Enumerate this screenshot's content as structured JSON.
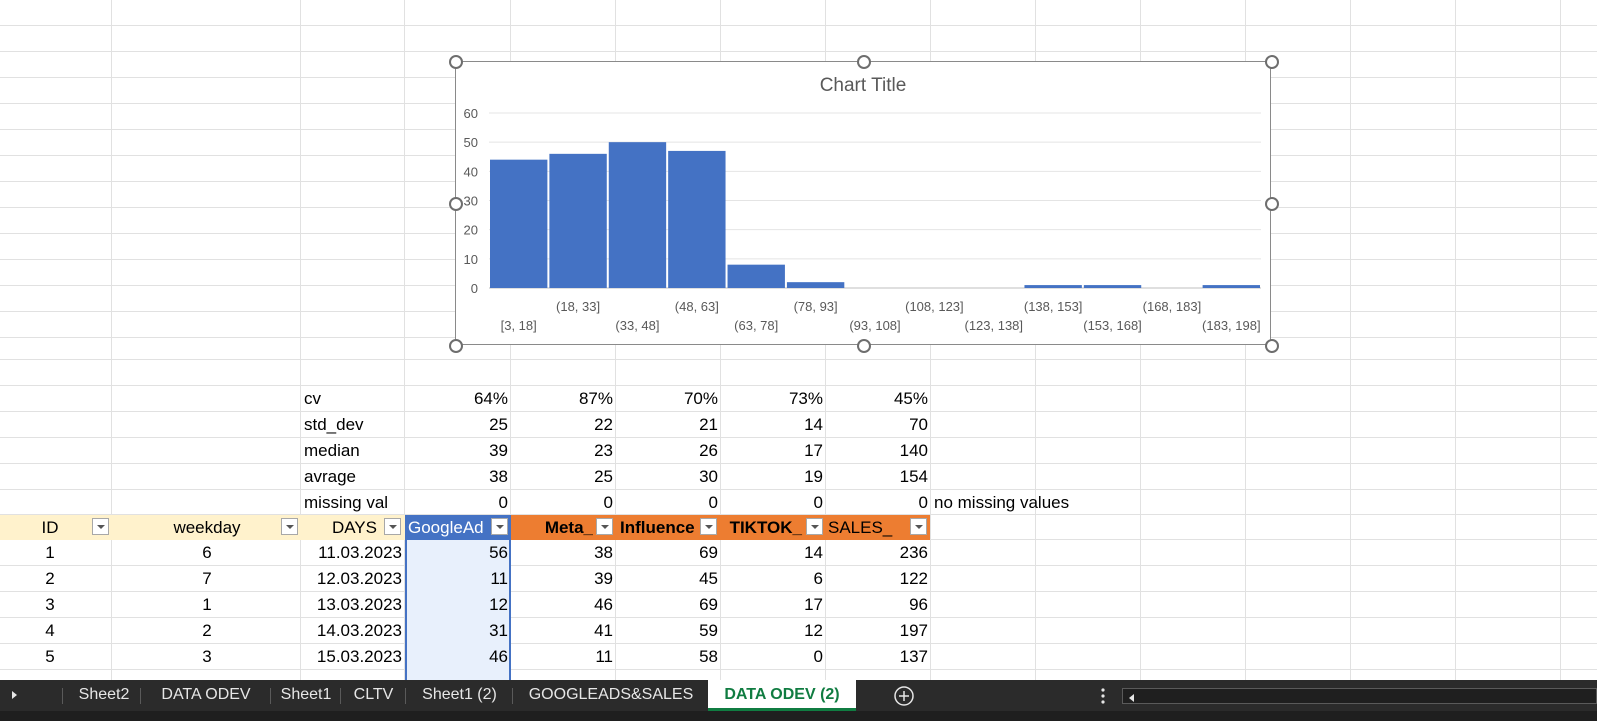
{
  "chart": {
    "title": "Chart Title",
    "bar_color": "#4472c4"
  },
  "chart_data": {
    "type": "bar",
    "title": "Chart Title",
    "categories": [
      "[3, 18]",
      "(18, 33]",
      "(33, 48]",
      "(48, 63]",
      "(63, 78]",
      "(78, 93]",
      "(93, 108]",
      "(108, 123]",
      "(123, 138]",
      "(138, 153]",
      "(153, 168]",
      "(168, 183]",
      "(183, 198]"
    ],
    "values": [
      44,
      46,
      50,
      47,
      8,
      2,
      0,
      0,
      0,
      1,
      1,
      0,
      1
    ],
    "ylim": [
      0,
      60
    ],
    "yticks": [
      "0",
      "10",
      "20",
      "30",
      "40",
      "50",
      "60"
    ],
    "grid": true,
    "legend": "none"
  },
  "stats": [
    {
      "label": "cv",
      "values": [
        "64%",
        "87%",
        "70%",
        "73%",
        "45%"
      ],
      "note": ""
    },
    {
      "label": "std_dev",
      "values": [
        "25",
        "22",
        "21",
        "14",
        "70"
      ],
      "note": ""
    },
    {
      "label": "median",
      "values": [
        "39",
        "23",
        "26",
        "17",
        "140"
      ],
      "note": ""
    },
    {
      "label": "avrage",
      "values": [
        "38",
        "25",
        "30",
        "19",
        "154"
      ],
      "note": ""
    },
    {
      "label": "missing val",
      "values": [
        "0",
        "0",
        "0",
        "0",
        "0"
      ],
      "note": "no missing values"
    }
  ],
  "table": {
    "headers": [
      "ID",
      "weekday",
      "DAYS",
      "GoogleAd",
      "Meta_",
      "Influence",
      "TIKTOK_",
      "SALES_"
    ],
    "rows": [
      [
        "1",
        "6",
        "11.03.2023",
        "56",
        "38",
        "69",
        "14",
        "236"
      ],
      [
        "2",
        "7",
        "12.03.2023",
        "11",
        "39",
        "45",
        "6",
        "122"
      ],
      [
        "3",
        "1",
        "13.03.2023",
        "12",
        "46",
        "69",
        "17",
        "96"
      ],
      [
        "4",
        "2",
        "14.03.2023",
        "31",
        "41",
        "59",
        "12",
        "197"
      ],
      [
        "5",
        "3",
        "15.03.2023",
        "46",
        "11",
        "58",
        "0",
        "137"
      ]
    ]
  },
  "colors": {
    "header_cream": "#fff2cc",
    "header_orange": "#ed7d31",
    "header_selected": "#4472c4",
    "selected_column": "#e8f0fc"
  },
  "sheet_tabs": [
    "Sheet2",
    "DATA ODEV",
    "Sheet1",
    "CLTV",
    "Sheet1 (2)",
    "GOOGLEADS&SALES",
    "DATA ODEV (2)"
  ],
  "active_tab": "DATA ODEV (2)",
  "icons": {
    "tab_scroll": "chevron-right-icon",
    "add_sheet": "plus-circle-icon",
    "more": "vertical-ellipsis-icon",
    "hscroll_left": "triangle-left-icon",
    "filter": "dropdown-arrow-icon"
  }
}
